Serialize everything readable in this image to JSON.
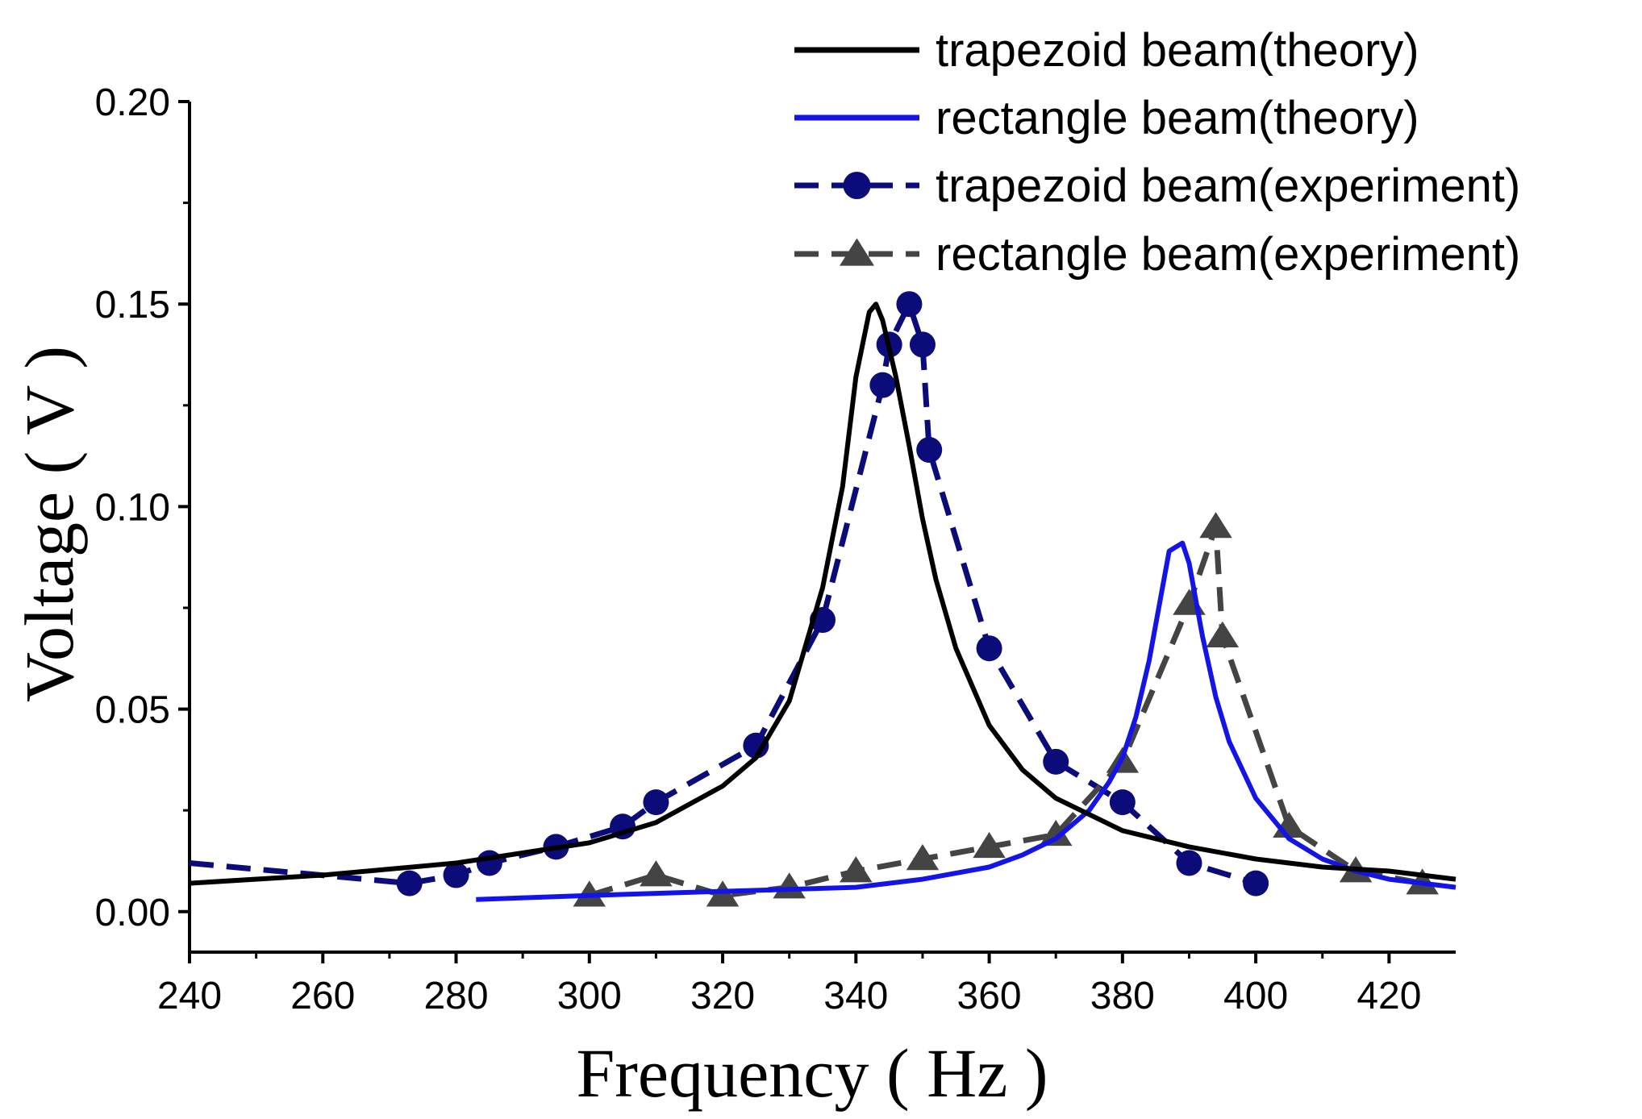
{
  "chart_data": {
    "type": "line",
    "title": "",
    "xlabel": "Frequency ( Hz )",
    "ylabel": "Voltage ( V )",
    "xlim": [
      240,
      430
    ],
    "ylim": [
      -0.01,
      0.2
    ],
    "x_ticks": [
      240,
      260,
      280,
      300,
      320,
      340,
      360,
      380,
      400,
      420
    ],
    "x_tick_labels": [
      "240",
      "260",
      "280",
      "300",
      "320",
      "340",
      "360",
      "380",
      "400",
      "420"
    ],
    "y_ticks": [
      0.0,
      0.05,
      0.1,
      0.15,
      0.2
    ],
    "y_tick_labels": [
      "0.00",
      "0.05",
      "0.10",
      "0.15",
      "0.20"
    ],
    "grid": false,
    "legend_position": "top-right",
    "series": [
      {
        "name": "trapezoid beam(theory)",
        "style": "solid",
        "marker": "none",
        "color": "#000000",
        "x": [
          240,
          260,
          280,
          300,
          310,
          320,
          325,
          330,
          335,
          338,
          340,
          342,
          343,
          344,
          346,
          348,
          350,
          352,
          355,
          360,
          365,
          370,
          380,
          390,
          400,
          410,
          420,
          430
        ],
        "y": [
          0.007,
          0.009,
          0.012,
          0.017,
          0.022,
          0.031,
          0.038,
          0.052,
          0.08,
          0.105,
          0.132,
          0.148,
          0.15,
          0.146,
          0.132,
          0.115,
          0.097,
          0.082,
          0.065,
          0.046,
          0.035,
          0.028,
          0.02,
          0.016,
          0.013,
          0.011,
          0.01,
          0.008
        ]
      },
      {
        "name": "rectangle beam(theory)",
        "style": "solid",
        "marker": "none",
        "color": "#1414e6",
        "x": [
          283,
          300,
          320,
          340,
          350,
          360,
          365,
          370,
          375,
          378,
          380,
          382,
          384,
          386,
          387,
          388,
          389,
          390,
          391,
          392,
          394,
          396,
          400,
          405,
          410,
          415,
          420,
          430
        ],
        "y": [
          0.003,
          0.004,
          0.005,
          0.006,
          0.008,
          0.011,
          0.014,
          0.018,
          0.025,
          0.032,
          0.038,
          0.048,
          0.062,
          0.08,
          0.089,
          0.09,
          0.091,
          0.086,
          0.077,
          0.068,
          0.053,
          0.042,
          0.028,
          0.018,
          0.013,
          0.01,
          0.008,
          0.006
        ]
      },
      {
        "name": "trapezoid beam(experiment)",
        "style": "dashed",
        "marker": "circle",
        "color": "#0b0b7a",
        "x": [
          240,
          273,
          280,
          285,
          295,
          305,
          310,
          325,
          335,
          344,
          345,
          348,
          350,
          351,
          360,
          370,
          380,
          390,
          400
        ],
        "y": [
          0.012,
          0.007,
          0.009,
          0.012,
          0.016,
          0.021,
          0.027,
          0.041,
          0.072,
          0.13,
          0.14,
          0.15,
          0.14,
          0.114,
          0.065,
          0.037,
          0.027,
          0.012,
          0.007
        ]
      },
      {
        "name": "rectangle beam(experiment)",
        "style": "dashed",
        "marker": "triangle",
        "color": "#444444",
        "x": [
          300,
          310,
          320,
          330,
          340,
          350,
          360,
          370,
          380,
          390,
          394,
          395,
          405,
          415,
          425
        ],
        "y": [
          0.004,
          0.009,
          0.004,
          0.006,
          0.01,
          0.013,
          0.016,
          0.019,
          0.037,
          0.076,
          0.095,
          0.068,
          0.021,
          0.01,
          0.007
        ]
      }
    ]
  }
}
